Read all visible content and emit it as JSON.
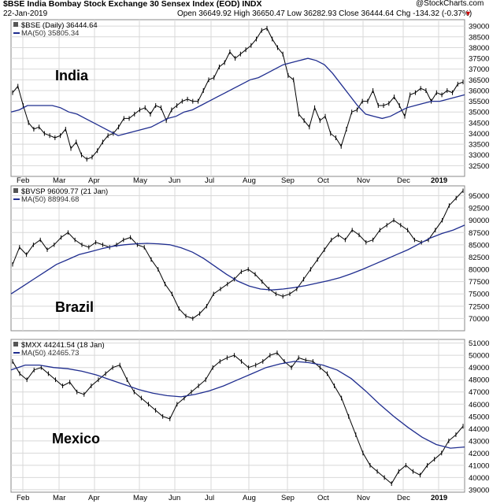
{
  "header": {
    "title": "$BSE India Bombay Stock Exchange 30 Sensex Index (EOD) INDX",
    "date": "22-Jan-2019",
    "quote": "Open 36649.92 High 36650.47 Low 36282.93 Close 36444.64 Chg -134.32 (-0.37%)",
    "down_marker": "▼",
    "brand": "@StockCharts.com"
  },
  "colors": {
    "price": "#000000",
    "ma": "#1f2d8f",
    "grid": "#d8d8d8",
    "frame": "#888888",
    "down": "#cc0000"
  },
  "icons": {
    "legend_marker": "tile-icon"
  },
  "chart_data": [
    {
      "type": "line",
      "label": "$BSE (Daily) 36444.64",
      "ma_label": "MA(50) 35805.34",
      "big_label": "India",
      "ylim": [
        32000,
        39300
      ],
      "yticks": [
        32500,
        33000,
        33500,
        34000,
        34500,
        35000,
        35500,
        36000,
        36500,
        37000,
        37500,
        38000,
        38500,
        39000
      ],
      "x_ticks": [
        "Feb",
        "Mar",
        "Apr",
        "May",
        "Jun",
        "Jul",
        "Aug",
        "Sep",
        "Oct",
        "Nov",
        "Dec",
        "2019"
      ],
      "series": [
        {
          "name": "$BSE",
          "values": [
            35900,
            36200,
            35300,
            34500,
            34200,
            34300,
            34000,
            33900,
            33800,
            33900,
            34200,
            33300,
            33600,
            33000,
            32800,
            32900,
            33200,
            33600,
            33900,
            34000,
            34300,
            34700,
            34700,
            34900,
            35100,
            35200,
            34900,
            35300,
            35200,
            34600,
            35100,
            35300,
            35500,
            35600,
            35500,
            35500,
            36000,
            36500,
            36600,
            37100,
            37300,
            37800,
            37500,
            37700,
            37900,
            38100,
            38400,
            38800,
            38900,
            38400,
            38000,
            37700,
            36700,
            36500,
            34900,
            34600,
            34300,
            35200,
            34600,
            34800,
            34000,
            33800,
            33400,
            34200,
            35000,
            35100,
            35500,
            35500,
            36000,
            35300,
            35300,
            35400,
            35700,
            35300,
            34800,
            35800,
            35900,
            36100,
            36000,
            35500,
            35900,
            35800,
            36000,
            35900,
            36300,
            36400
          ]
        },
        {
          "name": "MA(50)",
          "values": [
            35000,
            35100,
            35300,
            35300,
            35300,
            35300,
            35200,
            35000,
            34900,
            34700,
            34500,
            34300,
            34100,
            33900,
            34000,
            34100,
            34200,
            34300,
            34500,
            34700,
            34800,
            35000,
            35100,
            35300,
            35500,
            35700,
            35900,
            36100,
            36300,
            36500,
            36600,
            36800,
            37000,
            37200,
            37300,
            37400,
            37500,
            37400,
            37200,
            36800,
            36300,
            35800,
            35300,
            34900,
            34800,
            34700,
            34800,
            35000,
            35200,
            35300,
            35400,
            35500,
            35500,
            35600,
            35700,
            35800
          ]
        }
      ]
    },
    {
      "type": "line",
      "label": "$BVSP 96009.77 (21 Jan)",
      "ma_label": "MA(50) 88994.68",
      "big_label": "Brazil",
      "ylim": [
        67500,
        97000
      ],
      "yticks": [
        70000,
        72500,
        75000,
        77500,
        80000,
        82500,
        85000,
        87500,
        90000,
        92500,
        95000
      ],
      "x_ticks": [],
      "series": [
        {
          "name": "$BVSP",
          "values": [
            81000,
            84500,
            83000,
            85000,
            86000,
            84000,
            85000,
            86500,
            87500,
            86000,
            85000,
            84500,
            85500,
            85000,
            84500,
            85000,
            86000,
            86500,
            85000,
            84500,
            82000,
            80000,
            77000,
            75000,
            72000,
            70500,
            70000,
            71000,
            72500,
            75000,
            76000,
            77000,
            78000,
            79500,
            80000,
            79000,
            77500,
            76000,
            75000,
            74500,
            75000,
            76000,
            78000,
            80000,
            82000,
            84000,
            86000,
            87000,
            86000,
            88000,
            87000,
            85500,
            86000,
            88000,
            89000,
            90000,
            89000,
            88000,
            86000,
            85500,
            86000,
            88000,
            90000,
            93000,
            94500,
            96000
          ]
        },
        {
          "name": "MA(50)",
          "values": [
            75000,
            76500,
            78000,
            79500,
            81000,
            82000,
            83000,
            83600,
            84200,
            84700,
            85000,
            85200,
            85300,
            85200,
            85000,
            84400,
            83500,
            82200,
            80600,
            79000,
            77600,
            76600,
            76000,
            75800,
            76000,
            76300,
            76700,
            77200,
            77700,
            78300,
            79100,
            80000,
            81000,
            82000,
            83000,
            84000,
            85200,
            86400,
            87300,
            88000,
            89000
          ]
        }
      ]
    },
    {
      "type": "line",
      "label": "$MXX 44241.54 (18 Jan)",
      "ma_label": "MA(50) 42465.73",
      "big_label": "Mexico",
      "ylim": [
        38800,
        51300
      ],
      "yticks": [
        39000,
        40000,
        41000,
        42000,
        43000,
        44000,
        45000,
        46000,
        47000,
        48000,
        49000,
        50000,
        51000
      ],
      "x_ticks": [
        "Feb",
        "Mar",
        "Apr",
        "May",
        "Jun",
        "Jul",
        "Aug",
        "Sep",
        "Oct",
        "Nov",
        "Dec",
        "2019"
      ],
      "series": [
        {
          "name": "$MXX",
          "values": [
            49500,
            48500,
            48000,
            48800,
            49000,
            48500,
            48000,
            47500,
            47800,
            47000,
            46800,
            47500,
            48000,
            48500,
            49000,
            49200,
            48000,
            47000,
            46500,
            46000,
            45500,
            45000,
            44800,
            46000,
            46500,
            47000,
            47500,
            48000,
            49000,
            49500,
            49800,
            50000,
            49500,
            49000,
            49200,
            49500,
            50000,
            50200,
            49500,
            49000,
            49800,
            49600,
            49500,
            49000,
            48500,
            47500,
            46500,
            45000,
            43500,
            42000,
            41000,
            40500,
            40000,
            39500,
            40500,
            41000,
            40500,
            40200,
            41000,
            41500,
            42000,
            43000,
            43500,
            44200
          ]
        },
        {
          "name": "MA(50)",
          "values": [
            48800,
            49200,
            49200,
            49000,
            48900,
            48700,
            48400,
            48000,
            47600,
            47200,
            46900,
            46700,
            46600,
            46800,
            47100,
            47500,
            48000,
            48500,
            49000,
            49300,
            49500,
            49400,
            49200,
            48800,
            48100,
            47100,
            46000,
            45000,
            44100,
            43300,
            42700,
            42400,
            42500
          ]
        }
      ]
    }
  ]
}
